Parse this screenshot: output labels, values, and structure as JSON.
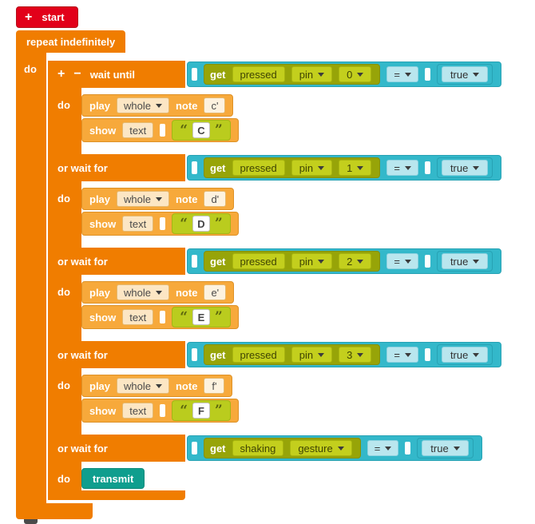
{
  "colors": {
    "start_red": "#E2001A",
    "control_orange": "#F07D00",
    "action_amber": "#F7A93B",
    "sensor_olive": "#97A408",
    "text_green": "#BACC1E",
    "logic_cyan": "#33B8CA",
    "comm_teal": "#0F9E8E"
  },
  "start_block": {
    "plus": "+",
    "label": "start"
  },
  "repeat_block": {
    "label": "repeat indefinitely",
    "do_label": "do"
  },
  "wait_block": {
    "plus": "+",
    "minus": "−",
    "label": "wait until",
    "or_label": "or wait for",
    "do_label": "do",
    "glyphs": {
      "open_quote": "“",
      "close_quote": "”"
    },
    "branches": [
      {
        "sensor_get": "get",
        "sensor_mode": "pressed",
        "sensor_kind": "pin",
        "sensor_port": "0",
        "op": "=",
        "value": "true",
        "play_label": "play",
        "play_duration": "whole",
        "note_word": "note",
        "note": "c'",
        "show_label": "show",
        "show_field": "text",
        "text": "C"
      },
      {
        "sensor_get": "get",
        "sensor_mode": "pressed",
        "sensor_kind": "pin",
        "sensor_port": "1",
        "op": "=",
        "value": "true",
        "play_label": "play",
        "play_duration": "whole",
        "note_word": "note",
        "note": "d'",
        "show_label": "show",
        "show_field": "text",
        "text": "D"
      },
      {
        "sensor_get": "get",
        "sensor_mode": "pressed",
        "sensor_kind": "pin",
        "sensor_port": "2",
        "op": "=",
        "value": "true",
        "play_label": "play",
        "play_duration": "whole",
        "note_word": "note",
        "note": "e'",
        "show_label": "show",
        "show_field": "text",
        "text": "E"
      },
      {
        "sensor_get": "get",
        "sensor_mode": "pressed",
        "sensor_kind": "pin",
        "sensor_port": "3",
        "op": "=",
        "value": "true",
        "play_label": "play",
        "play_duration": "whole",
        "note_word": "note",
        "note": "f'",
        "show_label": "show",
        "show_field": "text",
        "text": "F"
      },
      {
        "sensor_get": "get",
        "sensor_mode": "shaking",
        "sensor_kind": "gesture",
        "op": "=",
        "value": "true",
        "transmit_label": "transmit"
      }
    ]
  }
}
